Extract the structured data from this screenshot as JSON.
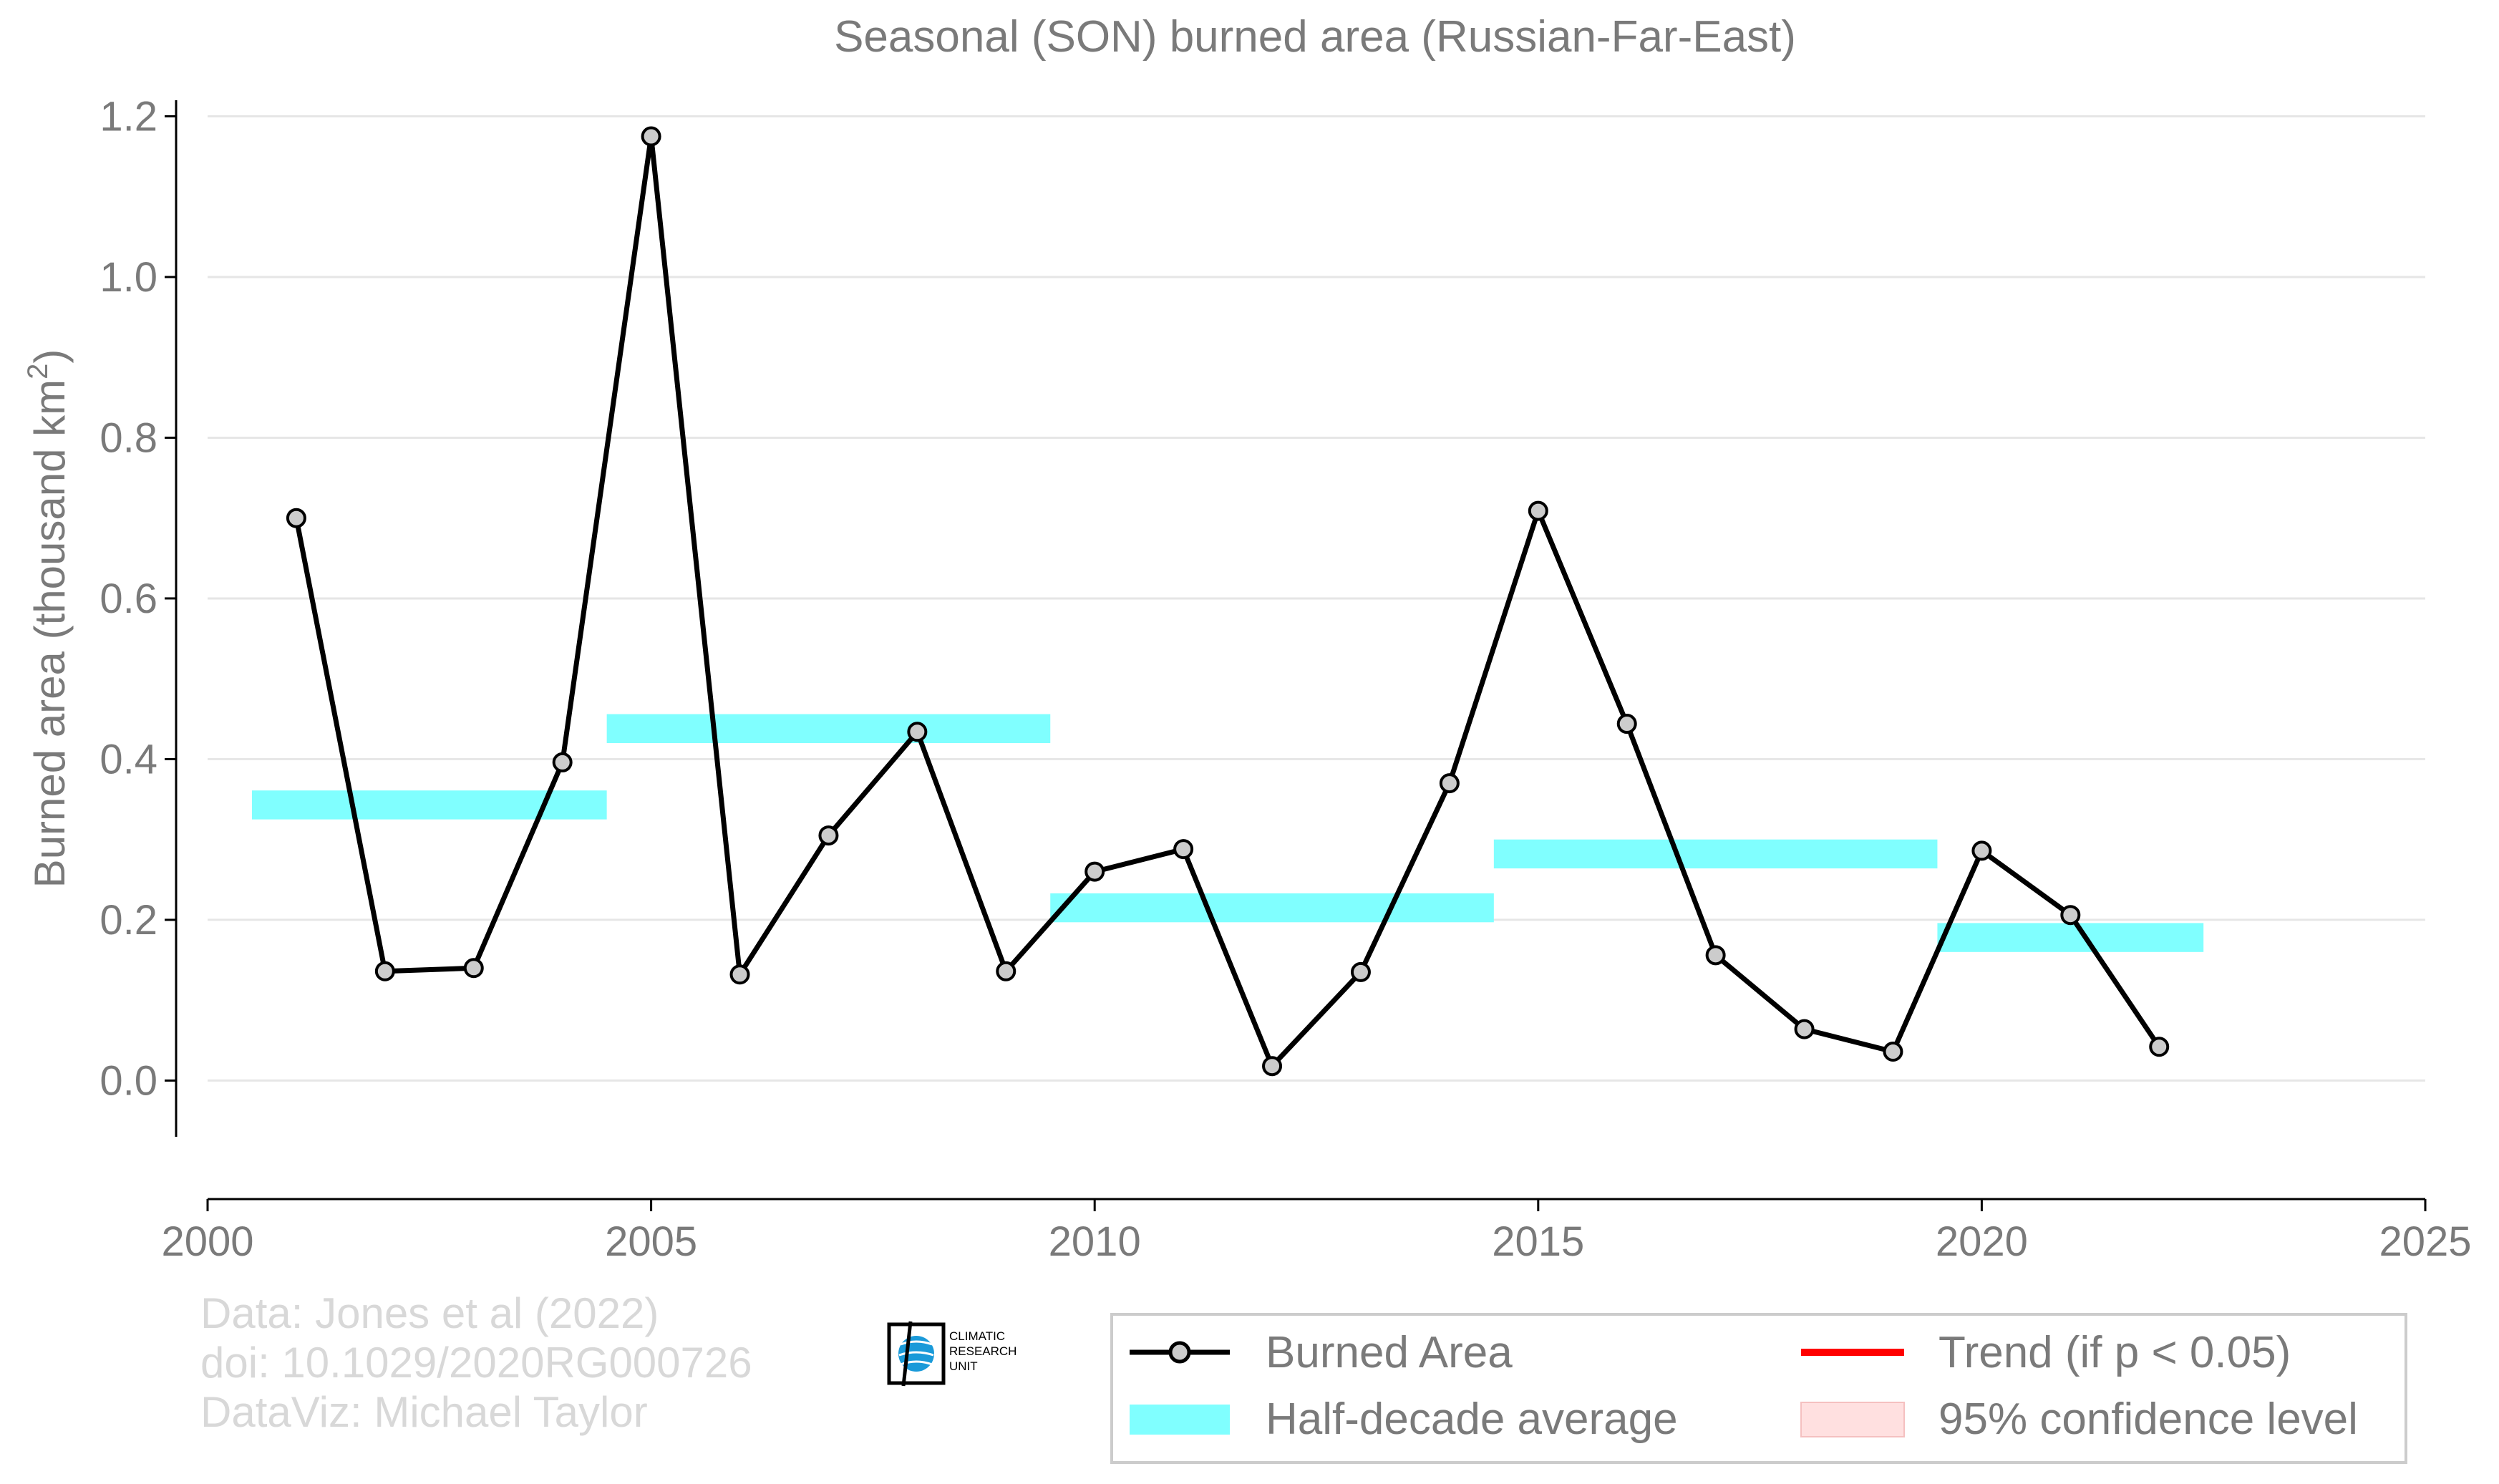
{
  "chart_data": {
    "type": "line",
    "title": "Seasonal (SON) burned area (Russian-Far-East)",
    "xlabel": "",
    "ylabel": "Burned area (thousand km",
    "ylabel_sup": "2",
    "ylabel_close": ")",
    "xlim": [
      2000,
      2025
    ],
    "ylim": [
      -0.07,
      1.22
    ],
    "x_ticks": [
      2000,
      2005,
      2010,
      2015,
      2020,
      2025
    ],
    "y_ticks": [
      0.0,
      0.2,
      0.4,
      0.6,
      0.8,
      1.0,
      1.2
    ],
    "y_tick_labels": [
      "0.0",
      "0.2",
      "0.4",
      "0.6",
      "0.8",
      "1.0",
      "1.2"
    ],
    "grid": "horizontal",
    "series": [
      {
        "name": "Burned Area",
        "color": "#000000",
        "marker_fill": "#cccccc",
        "x": [
          2001,
          2002,
          2003,
          2004,
          2005,
          2006,
          2007,
          2008,
          2009,
          2010,
          2011,
          2012,
          2013,
          2014,
          2015,
          2016,
          2017,
          2018,
          2019,
          2020,
          2021,
          2022
        ],
        "y": [
          0.7,
          0.136,
          0.14,
          0.396,
          1.175,
          0.132,
          0.305,
          0.434,
          0.136,
          0.26,
          0.288,
          0.018,
          0.135,
          0.37,
          0.709,
          0.444,
          0.156,
          0.064,
          0.036,
          0.286,
          0.206,
          0.042
        ]
      }
    ],
    "half_decade_average": {
      "name": "Half-decade average",
      "color": "#80ffff",
      "bands": [
        {
          "x_start": 2000.5,
          "x_end": 2004.5,
          "value": 0.343
        },
        {
          "x_start": 2004.5,
          "x_end": 2009.5,
          "value": 0.438
        },
        {
          "x_start": 2009.5,
          "x_end": 2014.5,
          "value": 0.215
        },
        {
          "x_start": 2014.5,
          "x_end": 2019.5,
          "value": 0.282
        },
        {
          "x_start": 2019.5,
          "x_end": 2022.5,
          "value": 0.178
        }
      ]
    },
    "legend": {
      "placement": "bottom-right",
      "items": [
        {
          "label": "Burned Area",
          "symbol": "line-marker",
          "color": "#000000"
        },
        {
          "label": "Trend (if p < 0.05)",
          "symbol": "line",
          "color": "#ff0000"
        },
        {
          "label": "Half-decade average",
          "symbol": "band",
          "color": "#80ffff"
        },
        {
          "label": "95% confidence level",
          "symbol": "band",
          "color": "#ffe0e0"
        }
      ]
    },
    "credits": [
      "Data: Jones et al (2022)",
      "doi: 10.1029/2020RG000726",
      "DataViz: Michael Taylor"
    ],
    "logo_text": [
      "CLIMATIC",
      "RESEARCH",
      "UNIT"
    ]
  }
}
